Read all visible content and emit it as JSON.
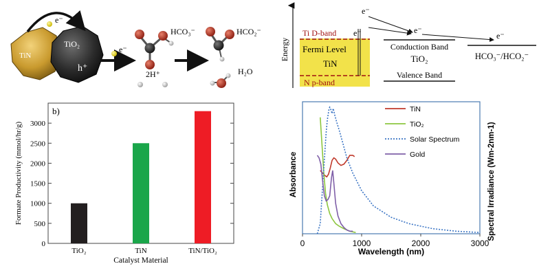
{
  "schematic": {
    "electron_label": "e⁻",
    "tin_label": "TiN",
    "tio2_label": "TiO₂",
    "hole_label": "h⁺",
    "bicarbonate_label": "HCO₃⁻",
    "formate_label": "HCO₂⁻",
    "protons_label": "2H⁺",
    "water_label": "H₂O"
  },
  "band_diagram": {
    "energy_label": "Energy",
    "ti_d_band": "Ti D-band",
    "fermi_level": "Fermi Level",
    "tin": "TiN",
    "n_p_band": "N p-band",
    "conduction_band": "Conduction Band",
    "tio2": "TiO₂",
    "valence_band": "Valence Band",
    "redox_couple": "HCO₃⁻/HCO₂⁻",
    "electron_label": "e⁻",
    "colors": {
      "tin_fill": "#f2e24a",
      "band_line": "#a01010"
    }
  },
  "chart_data": [
    {
      "type": "bar",
      "panel_label": "b)",
      "categories": [
        "TiO₂",
        "TiN",
        "TiN/TiO₂"
      ],
      "values": [
        1000,
        2500,
        3300
      ],
      "colors": [
        "#231f20",
        "#1aa64a",
        "#ee1c25"
      ],
      "xlabel": "Catalyst Material",
      "ylabel": "Formate Productivity (mmol/hr/g)",
      "ylim": [
        0,
        3500
      ],
      "yticks": [
        0,
        500,
        1000,
        1500,
        2000,
        2500,
        3000
      ]
    },
    {
      "type": "line",
      "xlabel": "Wavelength (nm)",
      "ylabel_left": "Absorbance",
      "ylabel_right": "Spectral Irradiance (Wm-2nm-1)",
      "xlim": [
        0,
        3000
      ],
      "xticks": [
        0,
        1000,
        2000,
        3000
      ],
      "legend_position": "top-right",
      "series": [
        {
          "name": "TiN",
          "color": "#c0392b",
          "style": "solid",
          "x": [
            300,
            340,
            380,
            410,
            440,
            470,
            500,
            530,
            560,
            600,
            650,
            700,
            750,
            800,
            850,
            880
          ],
          "y": [
            0.5,
            0.48,
            0.46,
            0.45,
            0.47,
            0.52,
            0.58,
            0.6,
            0.59,
            0.56,
            0.54,
            0.55,
            0.58,
            0.62,
            0.62,
            0.61
          ]
        },
        {
          "name": "TiO₂",
          "color": "#8dc63f",
          "style": "solid",
          "x": [
            300,
            330,
            360,
            390,
            420,
            460,
            500,
            560,
            620,
            700,
            800,
            900
          ],
          "y": [
            0.92,
            0.7,
            0.48,
            0.32,
            0.23,
            0.16,
            0.12,
            0.08,
            0.06,
            0.04,
            0.02,
            0.01
          ]
        },
        {
          "name": "Solar Spectrum",
          "color": "#3a74c4",
          "style": "dotted",
          "x": [
            250,
            300,
            330,
            360,
            380,
            400,
            420,
            440,
            450,
            460,
            480,
            500,
            520,
            550,
            580,
            620,
            680,
            750,
            850,
            1000,
            1200,
            1500,
            1800,
            2200,
            2600,
            3000
          ],
          "y": [
            0.0,
            0.08,
            0.3,
            0.52,
            0.66,
            0.8,
            0.9,
            0.96,
            0.99,
            1.0,
            0.98,
            0.95,
            0.99,
            0.93,
            0.88,
            0.82,
            0.72,
            0.6,
            0.48,
            0.34,
            0.22,
            0.13,
            0.08,
            0.04,
            0.02,
            0.01
          ]
        },
        {
          "name": "Gold",
          "color": "#7f5fa8",
          "style": "solid",
          "x": [
            250,
            280,
            310,
            340,
            370,
            400,
            430,
            460,
            490,
            510,
            530,
            560,
            600,
            650,
            700,
            750,
            800,
            850
          ],
          "y": [
            0.62,
            0.6,
            0.55,
            0.42,
            0.3,
            0.26,
            0.27,
            0.3,
            0.44,
            0.5,
            0.4,
            0.24,
            0.14,
            0.08,
            0.05,
            0.03,
            0.02,
            0.02
          ]
        }
      ]
    }
  ]
}
